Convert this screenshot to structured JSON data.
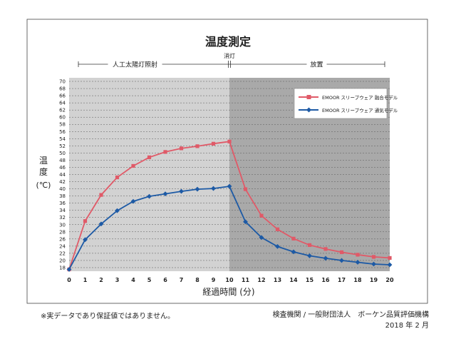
{
  "chart_data": {
    "type": "line",
    "title": "温度測定",
    "xlabel": "経過時間 (分)",
    "ylabel": "温度 (℃)",
    "x": [
      0,
      1,
      2,
      3,
      4,
      5,
      6,
      7,
      8,
      9,
      10,
      11,
      12,
      13,
      14,
      15,
      16,
      17,
      18,
      19,
      20
    ],
    "xlim": [
      0,
      20
    ],
    "ylim": [
      17,
      71
    ],
    "yticks": [
      18,
      20,
      22,
      24,
      26,
      28,
      30,
      32,
      34,
      36,
      38,
      40,
      42,
      44,
      46,
      48,
      50,
      52,
      54,
      56,
      58,
      60,
      62,
      64,
      66,
      68,
      70
    ],
    "grid": "horizontal dashed",
    "legend_position": "top-right",
    "phases": [
      {
        "label": "人工太陽灯照射",
        "start": 0,
        "end": 10
      },
      {
        "label": "消灯",
        "at": 10
      },
      {
        "label": "放置",
        "start": 10,
        "end": 20
      }
    ],
    "shading": [
      {
        "start": 0,
        "end": 10,
        "color": "#d2d2d2"
      },
      {
        "start": 10,
        "end": 20,
        "color": "#a9a9a9"
      }
    ],
    "series": [
      {
        "name": "EMOOR スリープウェア 融合モデル",
        "color": "#e05a68",
        "marker": "square",
        "values": [
          17.5,
          31.0,
          38.3,
          43.2,
          46.4,
          48.8,
          50.3,
          51.3,
          51.9,
          52.6,
          53.2,
          39.9,
          32.5,
          28.7,
          26.1,
          24.3,
          23.2,
          22.3,
          21.6,
          21.0,
          20.7
        ]
      },
      {
        "name": "EMOOR スリープウェア 通気モデル",
        "color": "#1d5aa5",
        "marker": "diamond",
        "values": [
          17.5,
          25.8,
          30.2,
          33.9,
          36.5,
          37.9,
          38.6,
          39.3,
          39.9,
          40.1,
          40.7,
          30.8,
          26.4,
          23.9,
          22.4,
          21.3,
          20.6,
          20.0,
          19.5,
          19.0,
          18.8
        ]
      }
    ]
  },
  "footer": {
    "note": "※実データであり保証値ではありません。",
    "source": "検査機関 / 一般財団法人　ボーケン品質評価機構",
    "date": "2018 年 2 月"
  }
}
